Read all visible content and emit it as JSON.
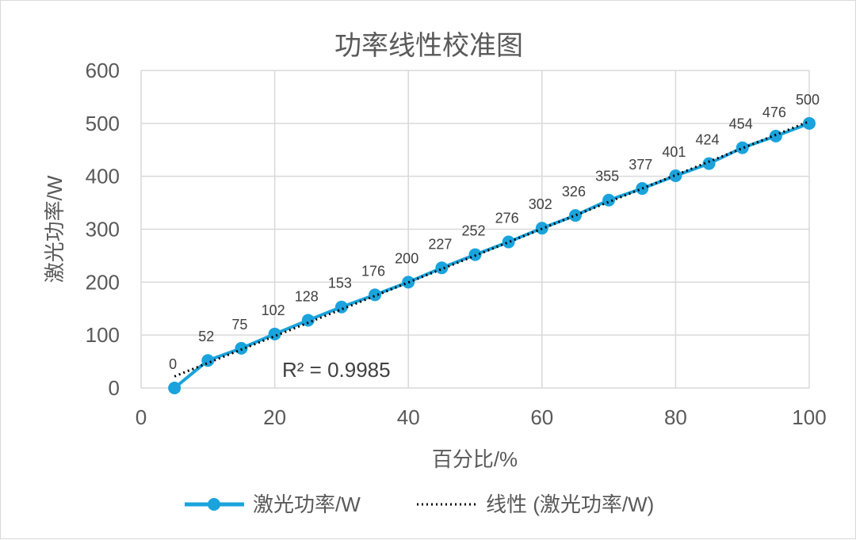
{
  "chart_data": {
    "type": "line",
    "title": "功率线性校准图",
    "xlabel": "百分比/%",
    "ylabel": "激光功率/W",
    "xlim": [
      0,
      100
    ],
    "ylim": [
      0,
      600
    ],
    "x_ticks": [
      "0",
      "20",
      "40",
      "60",
      "80",
      "100"
    ],
    "y_ticks": [
      "0",
      "100",
      "200",
      "300",
      "400",
      "500",
      "600"
    ],
    "grid": true,
    "legend_position": "bottom",
    "series": [
      {
        "name": "激光功率/W",
        "color": "#1aa3dc",
        "x": [
          5,
          10,
          15,
          20,
          25,
          30,
          35,
          40,
          45,
          50,
          55,
          60,
          65,
          70,
          75,
          80,
          85,
          90,
          95,
          100
        ],
        "y": [
          0,
          52,
          75,
          102,
          128,
          153,
          176,
          200,
          227,
          252,
          276,
          302,
          326,
          355,
          377,
          401,
          424,
          454,
          476,
          500
        ],
        "labels": [
          "0",
          "52",
          "75",
          "102",
          "128",
          "153",
          "176",
          "200",
          "227",
          "252",
          "276",
          "302",
          "326",
          "355",
          "377",
          "401",
          "424",
          "454",
          "476",
          "500"
        ]
      }
    ],
    "trendline": {
      "name": "线性 (激光功率/W)",
      "type": "linear",
      "color": "#000000",
      "r_squared": "R² = 0.9985"
    }
  }
}
